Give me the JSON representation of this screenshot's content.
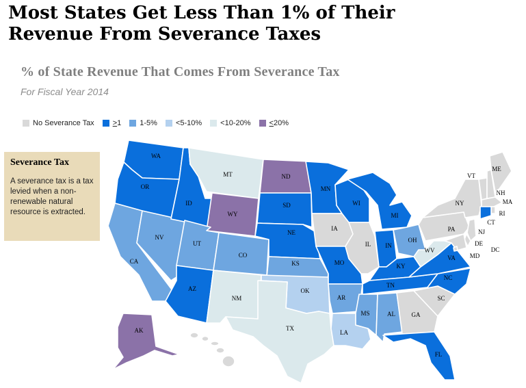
{
  "headline": "Most States Get Less Than 1% of Their Revenue From Severance Taxes",
  "subtitle": "% of State Revenue That Comes From Severance Tax",
  "note": "For Fiscal Year 2014",
  "legend": {
    "none": "No Severance Tax",
    "ge1_sym": ">",
    "ge1_num": "1",
    "c1_5": "1-5%",
    "c5_10": "<5-10%",
    "c10_20": "<10-20%",
    "le20_sym": "<",
    "le20_num": "20%"
  },
  "colors": {
    "none": "#d9d9d9",
    "ge1": "#0a6fdc",
    "c1_5": "#6ea6e0",
    "c5_10": "#b4d1ef",
    "c10_20": "#dbe9ec",
    "le20": "#8b72a8"
  },
  "sidebar": {
    "title": "Severance Tax",
    "text": "A severance tax is a tax levied when a non-renewable natural resource is extracted."
  },
  "states": [
    {
      "abbr": "WA",
      "cat": "ge1"
    },
    {
      "abbr": "OR",
      "cat": "ge1"
    },
    {
      "abbr": "CA",
      "cat": "c1_5"
    },
    {
      "abbr": "NV",
      "cat": "c1_5"
    },
    {
      "abbr": "ID",
      "cat": "ge1"
    },
    {
      "abbr": "MT",
      "cat": "c10_20"
    },
    {
      "abbr": "WY",
      "cat": "le20"
    },
    {
      "abbr": "UT",
      "cat": "c1_5"
    },
    {
      "abbr": "AZ",
      "cat": "ge1"
    },
    {
      "abbr": "CO",
      "cat": "c1_5"
    },
    {
      "abbr": "NM",
      "cat": "c10_20"
    },
    {
      "abbr": "ND",
      "cat": "le20"
    },
    {
      "abbr": "SD",
      "cat": "ge1"
    },
    {
      "abbr": "NE",
      "cat": "ge1"
    },
    {
      "abbr": "KS",
      "cat": "c1_5"
    },
    {
      "abbr": "OK",
      "cat": "c5_10"
    },
    {
      "abbr": "TX",
      "cat": "c10_20"
    },
    {
      "abbr": "MN",
      "cat": "ge1"
    },
    {
      "abbr": "IA",
      "cat": "none"
    },
    {
      "abbr": "MO",
      "cat": "ge1"
    },
    {
      "abbr": "AR",
      "cat": "c1_5"
    },
    {
      "abbr": "LA",
      "cat": "c5_10"
    },
    {
      "abbr": "WI",
      "cat": "ge1"
    },
    {
      "abbr": "IL",
      "cat": "none"
    },
    {
      "abbr": "MI",
      "cat": "ge1"
    },
    {
      "abbr": "IN",
      "cat": "ge1"
    },
    {
      "abbr": "OH",
      "cat": "c1_5"
    },
    {
      "abbr": "KY",
      "cat": "ge1"
    },
    {
      "abbr": "TN",
      "cat": "ge1"
    },
    {
      "abbr": "MS",
      "cat": "c1_5"
    },
    {
      "abbr": "AL",
      "cat": "c1_5"
    },
    {
      "abbr": "GA",
      "cat": "none"
    },
    {
      "abbr": "FL",
      "cat": "ge1"
    },
    {
      "abbr": "SC",
      "cat": "none"
    },
    {
      "abbr": "NC",
      "cat": "ge1"
    },
    {
      "abbr": "VA",
      "cat": "ge1"
    },
    {
      "abbr": "WV",
      "cat": "c10_20"
    },
    {
      "abbr": "PA",
      "cat": "none"
    },
    {
      "abbr": "NY",
      "cat": "none"
    },
    {
      "abbr": "VT",
      "cat": "none"
    },
    {
      "abbr": "NH",
      "cat": "none"
    },
    {
      "abbr": "ME",
      "cat": "none"
    },
    {
      "abbr": "MA",
      "cat": "none"
    },
    {
      "abbr": "RI",
      "cat": "none"
    },
    {
      "abbr": "CT",
      "cat": "ge1"
    },
    {
      "abbr": "NJ",
      "cat": "none"
    },
    {
      "abbr": "DE",
      "cat": "none"
    },
    {
      "abbr": "MD",
      "cat": "none"
    },
    {
      "abbr": "DC",
      "cat": "none"
    },
    {
      "abbr": "AK",
      "cat": "le20"
    },
    {
      "abbr": "HI",
      "cat": "none"
    }
  ]
}
